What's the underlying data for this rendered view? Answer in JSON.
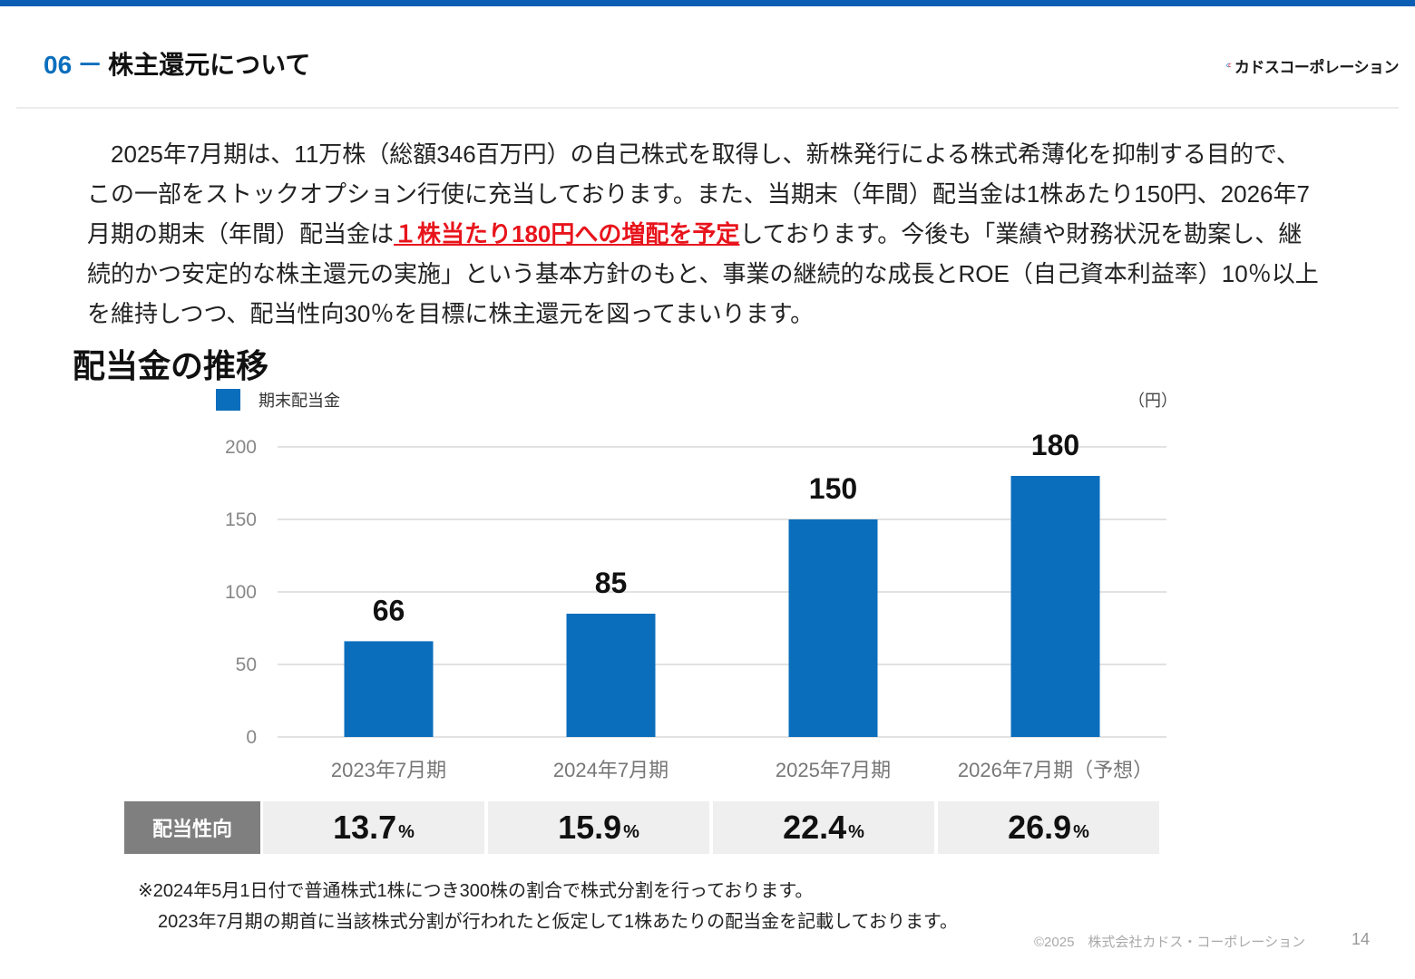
{
  "header": {
    "section_number": "06",
    "dash": "－",
    "title": "株主還元について",
    "logo_text": "カドスコーポレーション",
    "logo_icon": "company-logo-swoosh"
  },
  "intro": {
    "text_before": "　2025年7月期は、11万株（総額346百万円）の自己株式を取得し、新株発行による株式希薄化を抑制する目的で、この一部をストックオプション行使に充当しております。また、当期末（年間）配当金は1株あたり150円、2026年7月期の期末（年間）配当金は",
    "highlight": "１株当たり180円への増配を予定",
    "text_after": "しております。今後も「業績や財務状況を勘案し、継続的かつ安定的な株主還元の実施」という基本方針のもと、事業の継続的な成長とROE（自己資本利益率）10％以上を維持しつつ、配当性向30％を目標に株主還元を図ってまいります。"
  },
  "section_title": "配当金の推移",
  "legend_label": "期末配当金",
  "unit_label": "（円）",
  "chart_data": {
    "type": "bar",
    "categories": [
      "2023年7月期",
      "2024年7月期",
      "2025年7月期",
      "2026年7月期（予想）"
    ],
    "series": [
      {
        "name": "期末配当金",
        "values": [
          66,
          85,
          150,
          180
        ]
      }
    ],
    "value_labels": [
      "66",
      "85",
      "150",
      "180"
    ],
    "yticks": [
      0,
      50,
      100,
      150,
      200
    ],
    "ylim": [
      0,
      200
    ],
    "grid": true,
    "bar_color": "#0a6ebd",
    "grid_color": "#d9d9d9",
    "legend_position": "top-left"
  },
  "payout": {
    "label": "配当性向",
    "values": [
      "13.7",
      "15.9",
      "22.4",
      "26.9"
    ],
    "suffix": "%"
  },
  "notes": {
    "line1": "※2024年5月1日付で普通株式1株につき300株の割合で株式分割を行っております。",
    "line2": "2023年7月期の期首に当該株式分割が行われたと仮定して1株あたりの配当金を記載しております。"
  },
  "footer": {
    "copyright": "©2025　株式会社カドス・コーポレーション",
    "page_number": "14"
  },
  "colors": {
    "accent": "#0a5fb4",
    "highlight_red": "#e8141c",
    "payout_header_bg": "#7f7f7f",
    "payout_cell_bg": "#efefef"
  }
}
